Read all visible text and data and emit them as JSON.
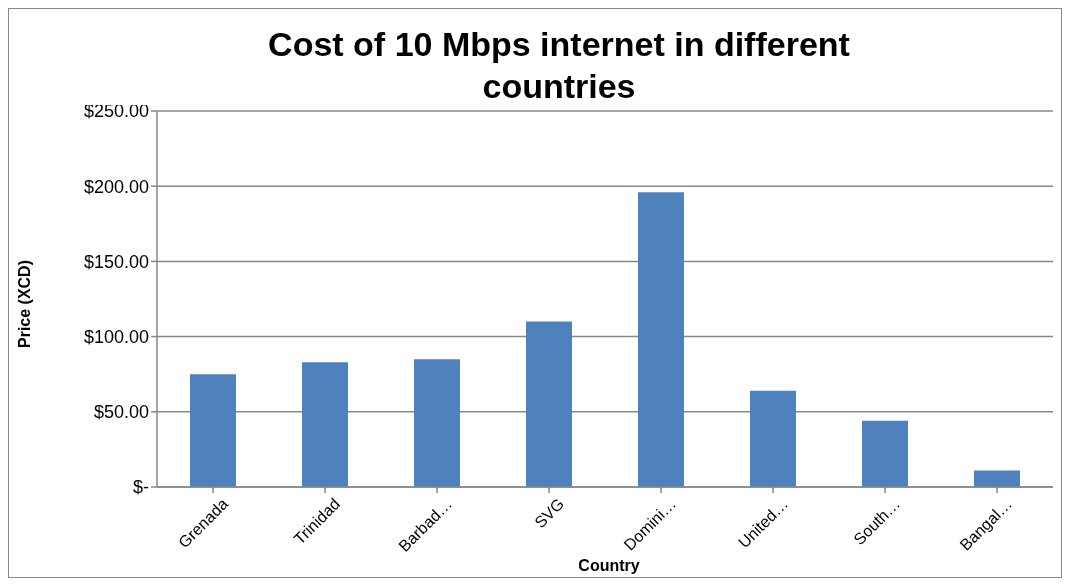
{
  "chart_data": {
    "type": "bar",
    "title": "Cost of 10 Mbps internet in different countries",
    "xlabel": "Country",
    "ylabel": "Price (XCD)",
    "categories": [
      "Grenada",
      "Trinidad",
      "Barbad…",
      "SVG",
      "Domini…",
      "United…",
      "South…",
      "Bangal…"
    ],
    "values": [
      75,
      83,
      85,
      110,
      196,
      64,
      44,
      11
    ],
    "color": "#4f81bd",
    "ylim": [
      0,
      250
    ],
    "yticks": [
      {
        "value": 0,
        "label": "$-"
      },
      {
        "value": 50,
        "label": "$50.00"
      },
      {
        "value": 100,
        "label": "$100.00"
      },
      {
        "value": 150,
        "label": "$150.00"
      },
      {
        "value": 200,
        "label": "$200.00"
      },
      {
        "value": 250,
        "label": "$250.00"
      }
    ],
    "grid": "y",
    "legend": false
  }
}
